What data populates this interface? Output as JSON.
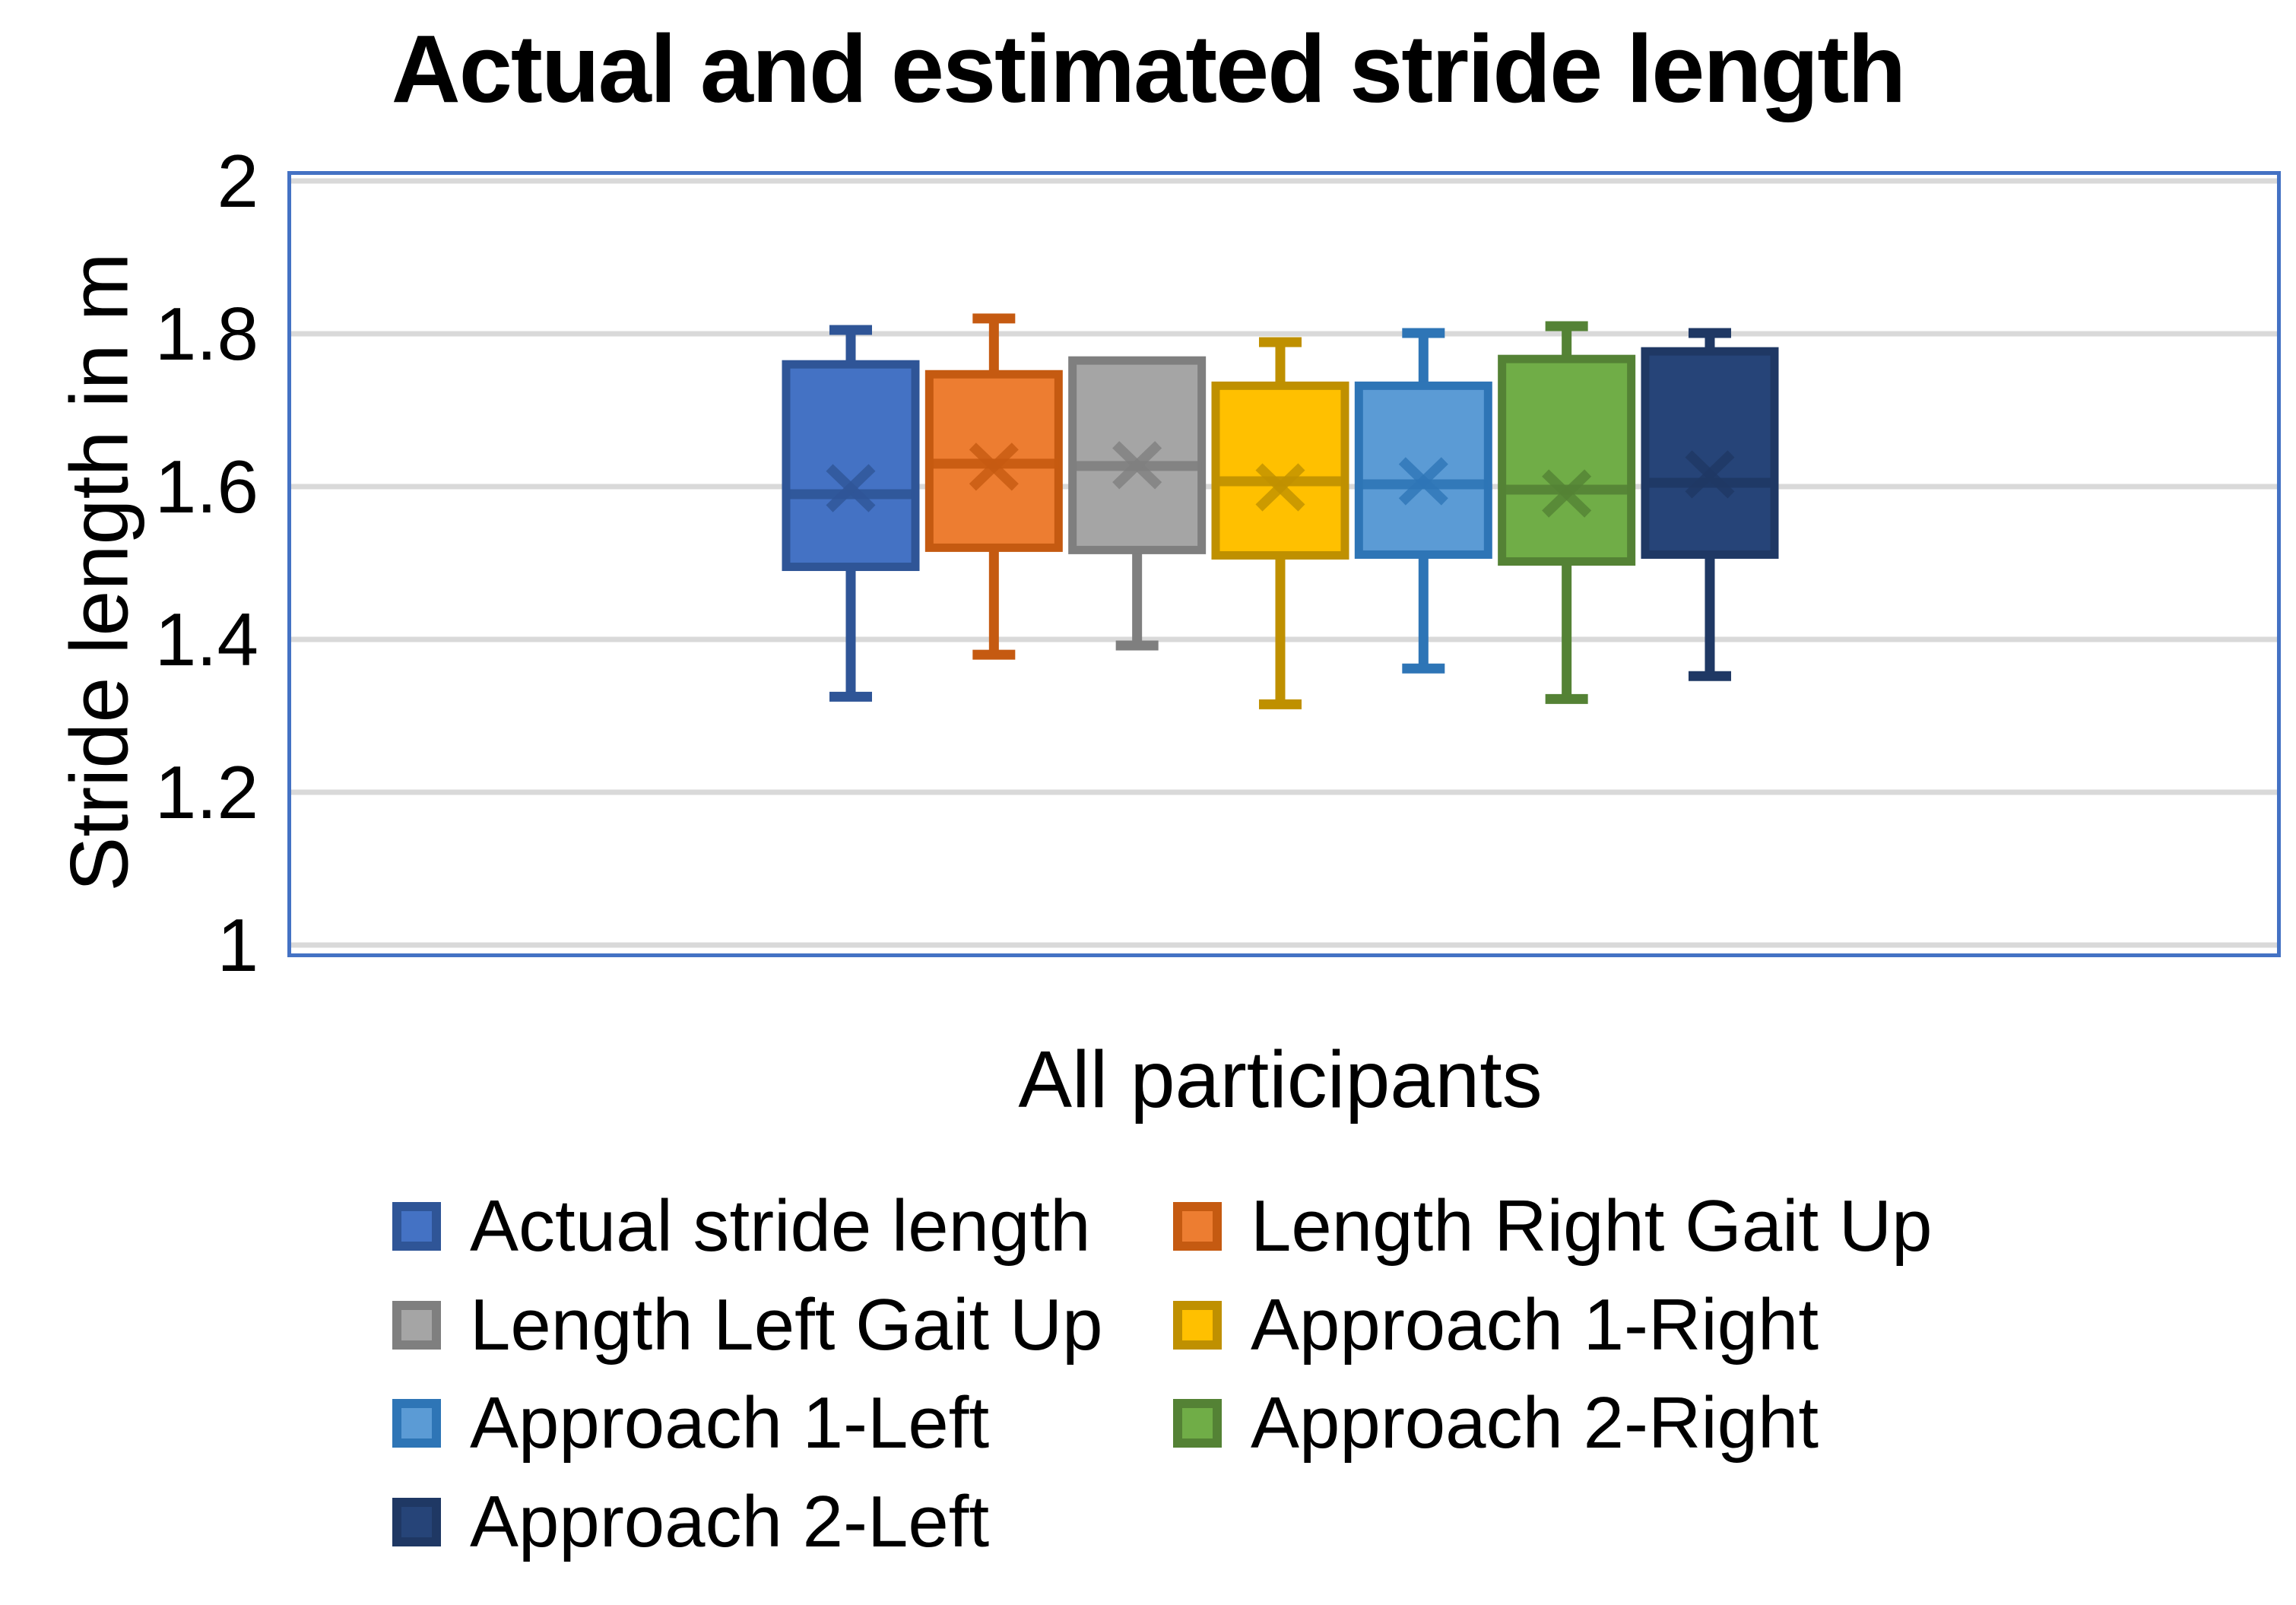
{
  "title": "Actual and estimated stride length",
  "y_axis": {
    "title": "Stride length in m",
    "ticks": [
      {
        "label": "2",
        "value": 2.0
      },
      {
        "label": "1.8",
        "value": 1.8
      },
      {
        "label": "1.6",
        "value": 1.6
      },
      {
        "label": "1.4",
        "value": 1.4
      },
      {
        "label": "1.2",
        "value": 1.2
      },
      {
        "label": "1",
        "value": 1.0
      }
    ]
  },
  "x_axis": {
    "label": "All participants"
  },
  "colors": {
    "plot_border": "#4472C4",
    "gridline": "#D9D9D9"
  },
  "chart_data": {
    "type": "boxplot",
    "title": "Actual and estimated stride length",
    "categories": [
      "All participants"
    ],
    "xlabel": "All participants",
    "ylabel": "Stride length in m",
    "ylim": [
      1,
      2
    ],
    "gridline_values": [
      2.0,
      1.8,
      1.6,
      1.4,
      1.2,
      1.0
    ],
    "grid": true,
    "legend_position": "bottom",
    "series": [
      {
        "name": "Actual stride length",
        "fill": "#4472C4",
        "stroke": "#2F5597",
        "min": 1.325,
        "q1": 1.495,
        "median": 1.59,
        "mean": 1.598,
        "q3": 1.76,
        "max": 1.805
      },
      {
        "name": "Length Right Gait Up",
        "fill": "#ED7D31",
        "stroke": "#C55A11",
        "min": 1.38,
        "q1": 1.52,
        "median": 1.63,
        "mean": 1.626,
        "q3": 1.747,
        "max": 1.82
      },
      {
        "name": "Length Left Gait Up",
        "fill": "#A5A5A5",
        "stroke": "#7F7F7F",
        "min": 1.392,
        "q1": 1.517,
        "median": 1.627,
        "mean": 1.628,
        "q3": 1.765,
        "max": 1.765
      },
      {
        "name": "Approach 1-Right",
        "fill": "#FFC000",
        "stroke": "#BF9000",
        "min": 1.315,
        "q1": 1.51,
        "median": 1.607,
        "mean": 1.599,
        "q3": 1.732,
        "max": 1.789
      },
      {
        "name": "Approach 1-Left",
        "fill": "#5B9BD5",
        "stroke": "#2E75B6",
        "min": 1.362,
        "q1": 1.511,
        "median": 1.603,
        "mean": 1.607,
        "q3": 1.732,
        "max": 1.801
      },
      {
        "name": "Approach 2-Right",
        "fill": "#70AD47",
        "stroke": "#548235",
        "min": 1.322,
        "q1": 1.502,
        "median": 1.596,
        "mean": 1.591,
        "q3": 1.767,
        "max": 1.81
      },
      {
        "name": "Approach 2-Left",
        "fill": "#264478",
        "stroke": "#1F3864",
        "min": 1.352,
        "q1": 1.511,
        "median": 1.605,
        "mean": 1.616,
        "q3": 1.777,
        "max": 1.801
      }
    ]
  }
}
